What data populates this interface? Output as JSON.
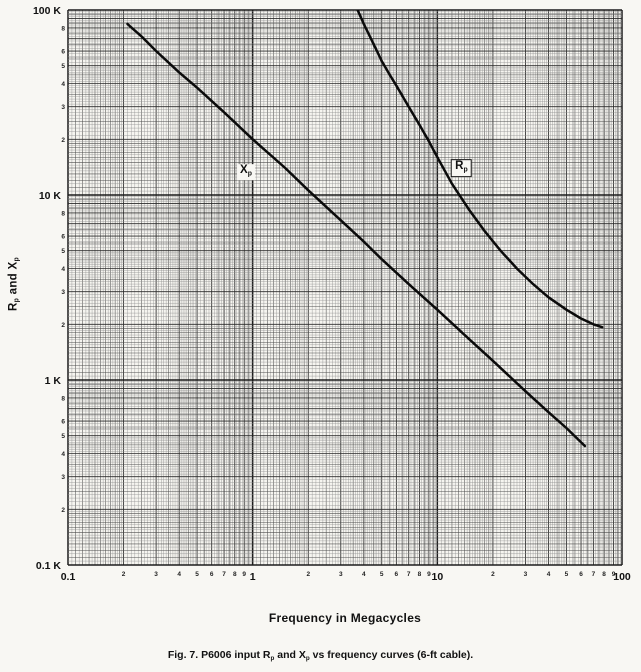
{
  "figure": {
    "x_axis_title": "Frequency in Megacycles",
    "y_axis_title_parts": {
      "c1": "R",
      "s1": "p",
      "c2": " and X",
      "s2": "p"
    },
    "caption_parts": {
      "c1": "Fig. 7.  P6006 input R",
      "s1": "p",
      "c2": " and X",
      "s2": "p",
      "c3": " vs frequency curves (6-ft cable)."
    }
  },
  "chart_data": {
    "type": "line",
    "x_scale": "log",
    "y_scale": "log",
    "grid": true,
    "xlabel": "Frequency in Megacycles",
    "ylabel": "Rp and Xp",
    "x_range_megacycles": [
      0.1,
      100
    ],
    "y_range_kilohms": [
      0.1,
      100
    ],
    "x_decade_ticks": [
      {
        "v": 0.1,
        "label": "0.1"
      },
      {
        "v": 1,
        "label": "1"
      },
      {
        "v": 10,
        "label": "10"
      },
      {
        "v": 100,
        "label": "100"
      }
    ],
    "y_decade_ticks": [
      {
        "v": 100,
        "label": "100 K"
      },
      {
        "v": 10,
        "label": "10 K"
      },
      {
        "v": 1,
        "label": "1 K"
      },
      {
        "v": 0.1,
        "label": "0.1 K"
      }
    ],
    "x_minor_digits": [
      2,
      3,
      4,
      5,
      6,
      7,
      8,
      9
    ],
    "y_minor_digits": [
      8,
      6,
      5,
      4,
      3,
      2
    ],
    "series": [
      {
        "name": "Xp",
        "label_main": "X",
        "label_sub": "p",
        "label_at": {
          "f": 0.92,
          "k": 13.3
        },
        "points_mc_kohm": [
          [
            0.21,
            84
          ],
          [
            0.25,
            72
          ],
          [
            0.3,
            60
          ],
          [
            0.4,
            46
          ],
          [
            0.5,
            38
          ],
          [
            0.7,
            28
          ],
          [
            1,
            20
          ],
          [
            1.5,
            14
          ],
          [
            2,
            10.6
          ],
          [
            3,
            7.3
          ],
          [
            4,
            5.6
          ],
          [
            5,
            4.5
          ],
          [
            7,
            3.3
          ],
          [
            10,
            2.4
          ],
          [
            15,
            1.65
          ],
          [
            20,
            1.27
          ],
          [
            30,
            0.87
          ],
          [
            40,
            0.67
          ],
          [
            50,
            0.55
          ],
          [
            63,
            0.44
          ]
        ]
      },
      {
        "name": "Rp",
        "label_main": "R",
        "label_sub": "p",
        "label_at": {
          "f": 13.5,
          "k": 14
        },
        "points_mc_kohm": [
          [
            3.65,
            105
          ],
          [
            3.7,
            100
          ],
          [
            4,
            84
          ],
          [
            4.5,
            66
          ],
          [
            5,
            53
          ],
          [
            5.5,
            45
          ],
          [
            6,
            39
          ],
          [
            7,
            30
          ],
          [
            8,
            24
          ],
          [
            9,
            19.5
          ],
          [
            10,
            16
          ],
          [
            12,
            11.5
          ],
          [
            15,
            8.2
          ],
          [
            18,
            6.4
          ],
          [
            22,
            5.0
          ],
          [
            27,
            4.0
          ],
          [
            33,
            3.3
          ],
          [
            40,
            2.8
          ],
          [
            50,
            2.4
          ],
          [
            60,
            2.15
          ],
          [
            70,
            2.0
          ],
          [
            78,
            1.93
          ]
        ]
      }
    ]
  }
}
